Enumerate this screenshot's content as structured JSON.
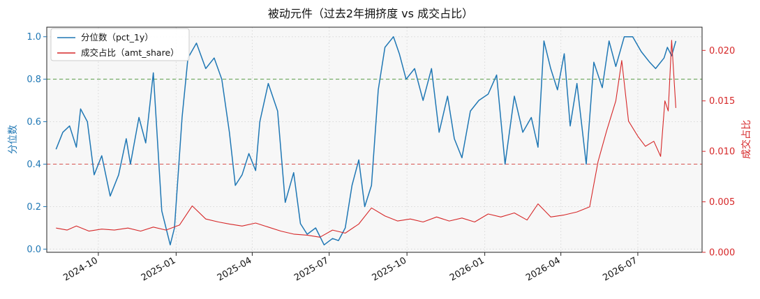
{
  "chart_data": {
    "type": "line",
    "title": "被动元件（过去2年拥挤度 vs 成交占比）",
    "xlabel": "",
    "ylabel_left": "分位数",
    "ylabel_right": "成交占比",
    "xlim": [
      "2024-08-01",
      "2026-09-15"
    ],
    "ylim_left": [
      -0.015,
      1.045
    ],
    "ylim_right": [
      0,
      0.0223
    ],
    "x_ticks": [
      "2024-10",
      "2025-01",
      "2025-04",
      "2025-07",
      "2025-10",
      "2026-01",
      "2026-04",
      "2026-07"
    ],
    "y_ticks_left": [
      "0.0",
      "0.2",
      "0.4",
      "0.6",
      "0.8",
      "1.0"
    ],
    "y_ticks_right": [
      "0.000",
      "0.005",
      "0.010",
      "0.015",
      "0.020"
    ],
    "reference_lines": [
      {
        "axis": "left",
        "value": 0.8,
        "color": "#5a9e48",
        "style": "dashed"
      },
      {
        "axis": "left",
        "value": 0.4,
        "color": "#d9534f",
        "style": "dashed"
      }
    ],
    "grid": true,
    "legend_position": "top-left",
    "colors": {
      "pct": "#1f77b4",
      "amt": "#d62728",
      "plot_bg": "#f7f7f7"
    },
    "series": [
      {
        "name": "分位数（pct_1y）",
        "axis": "left",
        "x": [
          "2024-08-12",
          "2024-08-20",
          "2024-08-28",
          "2024-09-05",
          "2024-09-10",
          "2024-09-18",
          "2024-09-26",
          "2024-10-05",
          "2024-10-15",
          "2024-10-25",
          "2024-11-03",
          "2024-11-08",
          "2024-11-18",
          "2024-11-26",
          "2024-12-05",
          "2024-12-15",
          "2024-12-25",
          "2024-12-30",
          "2025-01-08",
          "2025-01-15",
          "2025-01-25",
          "2025-02-05",
          "2025-02-15",
          "2025-02-24",
          "2025-03-05",
          "2025-03-12",
          "2025-03-20",
          "2025-03-28",
          "2025-04-05",
          "2025-04-10",
          "2025-04-20",
          "2025-05-01",
          "2025-05-10",
          "2025-05-20",
          "2025-05-28",
          "2025-06-05",
          "2025-06-15",
          "2025-06-25",
          "2025-07-05",
          "2025-07-12",
          "2025-07-20",
          "2025-07-28",
          "2025-08-05",
          "2025-08-12",
          "2025-08-20",
          "2025-08-28",
          "2025-09-05",
          "2025-09-15",
          "2025-09-22",
          "2025-09-30",
          "2025-10-10",
          "2025-10-20",
          "2025-10-30",
          "2025-11-08",
          "2025-11-18",
          "2025-11-26",
          "2025-12-05",
          "2025-12-15",
          "2025-12-25",
          "2026-01-05",
          "2026-01-15",
          "2026-01-25",
          "2026-02-05",
          "2026-02-15",
          "2026-02-25",
          "2026-03-05",
          "2026-03-12",
          "2026-03-20",
          "2026-03-28",
          "2026-04-05",
          "2026-04-12",
          "2026-04-20",
          "2026-05-01",
          "2026-05-10",
          "2026-05-20",
          "2026-05-28",
          "2026-06-05",
          "2026-06-15",
          "2026-06-25",
          "2026-07-05",
          "2026-07-15",
          "2026-07-22",
          "2026-08-01",
          "2026-08-05",
          "2026-08-10",
          "2026-08-15"
        ],
        "values": [
          0.47,
          0.55,
          0.58,
          0.48,
          0.66,
          0.6,
          0.35,
          0.44,
          0.25,
          0.35,
          0.52,
          0.4,
          0.62,
          0.5,
          0.83,
          0.18,
          0.02,
          0.1,
          0.62,
          0.9,
          0.97,
          0.85,
          0.9,
          0.8,
          0.55,
          0.3,
          0.35,
          0.45,
          0.37,
          0.6,
          0.78,
          0.65,
          0.22,
          0.36,
          0.12,
          0.07,
          0.1,
          0.02,
          0.05,
          0.04,
          0.1,
          0.3,
          0.42,
          0.2,
          0.3,
          0.75,
          0.95,
          1.0,
          0.92,
          0.8,
          0.85,
          0.7,
          0.85,
          0.55,
          0.72,
          0.52,
          0.43,
          0.65,
          0.7,
          0.73,
          0.82,
          0.4,
          0.72,
          0.55,
          0.62,
          0.48,
          0.98,
          0.85,
          0.75,
          0.92,
          0.58,
          0.78,
          0.4,
          0.88,
          0.76,
          0.98,
          0.86,
          1.0,
          1.0,
          0.93,
          0.88,
          0.85,
          0.9,
          0.95,
          0.91,
          0.98
        ]
      },
      {
        "name": "成交占比（amt_share）",
        "axis": "right",
        "x": [
          "2024-08-12",
          "2024-08-25",
          "2024-09-05",
          "2024-09-20",
          "2024-10-05",
          "2024-10-20",
          "2024-11-05",
          "2024-11-20",
          "2024-12-05",
          "2024-12-20",
          "2025-01-05",
          "2025-01-20",
          "2025-02-05",
          "2025-02-20",
          "2025-03-05",
          "2025-03-20",
          "2025-04-05",
          "2025-04-20",
          "2025-05-05",
          "2025-05-20",
          "2025-06-05",
          "2025-06-20",
          "2025-07-05",
          "2025-07-20",
          "2025-08-05",
          "2025-08-20",
          "2025-09-05",
          "2025-09-20",
          "2025-10-05",
          "2025-10-20",
          "2025-11-05",
          "2025-11-20",
          "2025-12-05",
          "2025-12-20",
          "2026-01-05",
          "2026-01-20",
          "2026-02-05",
          "2026-02-20",
          "2026-03-05",
          "2026-03-20",
          "2026-04-05",
          "2026-04-20",
          "2026-05-05",
          "2026-05-15",
          "2026-05-25",
          "2026-06-05",
          "2026-06-12",
          "2026-06-20",
          "2026-07-01",
          "2026-07-10",
          "2026-07-20",
          "2026-07-28",
          "2026-08-02",
          "2026-08-06",
          "2026-08-10",
          "2026-08-15"
        ],
        "values": [
          0.0024,
          0.0022,
          0.0026,
          0.0021,
          0.0023,
          0.0022,
          0.0024,
          0.0021,
          0.0025,
          0.0022,
          0.0027,
          0.0046,
          0.0033,
          0.003,
          0.0028,
          0.0026,
          0.0029,
          0.0025,
          0.0021,
          0.0018,
          0.0017,
          0.0015,
          0.0022,
          0.0019,
          0.0028,
          0.0044,
          0.0036,
          0.0031,
          0.0033,
          0.003,
          0.0035,
          0.0031,
          0.0034,
          0.003,
          0.0038,
          0.0035,
          0.0039,
          0.0032,
          0.0048,
          0.0035,
          0.0037,
          0.004,
          0.0045,
          0.009,
          0.012,
          0.015,
          0.019,
          0.013,
          0.0115,
          0.0105,
          0.011,
          0.0095,
          0.015,
          0.014,
          0.021,
          0.0143
        ]
      }
    ]
  }
}
